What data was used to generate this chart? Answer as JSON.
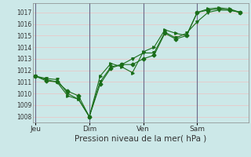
{
  "title": "",
  "xlabel": "Pression niveau de la mer( hPa )",
  "background_color": "#cce8e8",
  "grid_color": "#e8c8c8",
  "line_color": "#1a6e1a",
  "vline_color": "#6a6a8a",
  "ylim": [
    1007.5,
    1017.8
  ],
  "yticks": [
    1008,
    1009,
    1010,
    1011,
    1012,
    1013,
    1014,
    1015,
    1016,
    1017
  ],
  "xtick_labels": [
    "Jeu",
    "Dim",
    "Ven",
    "Sam"
  ],
  "xtick_positions": [
    0.0,
    2.0,
    4.0,
    6.0
  ],
  "xlim": [
    -0.1,
    7.9
  ],
  "vline_positions": [
    0.0,
    2.0,
    4.0,
    6.0
  ],
  "series": [
    {
      "x": [
        0.0,
        0.4,
        0.8,
        1.2,
        1.6,
        2.0,
        2.4,
        2.8,
        3.2,
        3.6,
        4.0,
        4.4,
        4.8,
        5.2,
        5.6,
        6.0,
        6.4,
        6.8,
        7.2,
        7.6
      ],
      "y": [
        1011.5,
        1011.1,
        1011.0,
        1010.2,
        1009.8,
        1008.0,
        1010.8,
        1012.2,
        1012.5,
        1012.5,
        1013.0,
        1013.3,
        1015.2,
        1014.7,
        1015.0,
        1017.0,
        1017.2,
        1017.3,
        1017.2,
        1017.0
      ],
      "marker": "D",
      "markersize": 2.5
    },
    {
      "x": [
        0.0,
        0.4,
        0.8,
        1.2,
        1.6,
        2.0,
        2.4,
        2.8,
        3.2,
        3.6,
        4.0,
        4.4,
        4.8,
        5.2,
        5.6,
        6.0,
        6.4,
        6.8,
        7.2,
        7.6
      ],
      "y": [
        1011.5,
        1011.2,
        1011.0,
        1009.8,
        1009.5,
        1008.0,
        1011.5,
        1012.6,
        1012.3,
        1011.8,
        1013.6,
        1014.0,
        1015.5,
        1015.2,
        1015.0,
        1017.0,
        1017.3,
        1017.4,
        1017.3,
        1017.0
      ],
      "marker": ">",
      "markersize": 2.5
    },
    {
      "x": [
        0.0,
        0.4,
        0.8,
        1.2,
        1.6,
        2.0,
        2.4,
        2.8,
        3.2,
        3.6,
        4.0,
        4.4,
        4.8,
        5.2,
        5.6,
        6.0,
        6.4,
        6.8,
        7.2,
        7.6
      ],
      "y": [
        1011.5,
        1011.3,
        1011.2,
        1010.0,
        1009.5,
        1008.0,
        1011.0,
        1012.3,
        1012.5,
        1013.0,
        1013.5,
        1013.5,
        1015.3,
        1014.8,
        1015.2,
        1016.2,
        1017.0,
        1017.2,
        1017.2,
        1017.0
      ],
      "marker": "v",
      "markersize": 2.5
    }
  ]
}
